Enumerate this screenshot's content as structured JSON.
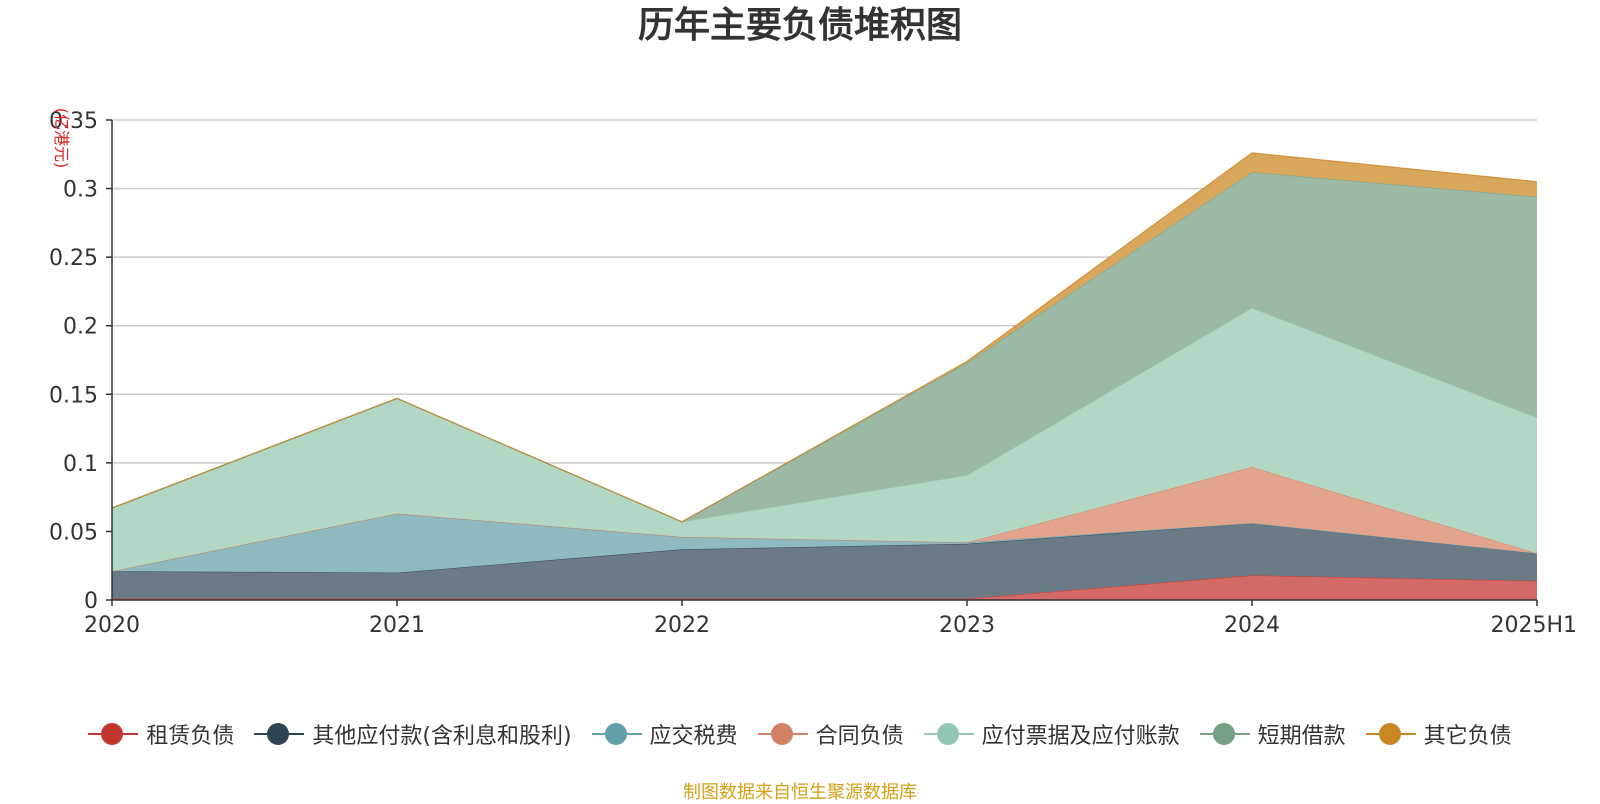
{
  "title": "历年主要负债堆积图",
  "footer": "制图数据来自恒生聚源数据库",
  "chart_data": {
    "type": "area",
    "stacked": true,
    "title": "历年主要负债堆积图",
    "ylabel": "(亿港元)",
    "ylim": [
      0,
      0.35
    ],
    "yticks": [
      0,
      0.05,
      0.1,
      0.15,
      0.2,
      0.25,
      0.3,
      0.35
    ],
    "yticklabels": [
      "0",
      "0.05",
      "0.1",
      "0.15",
      "0.2",
      "0.25",
      "0.3",
      "0.35"
    ],
    "categories": [
      "2020",
      "2021",
      "2022",
      "2023",
      "2024",
      "2025H1"
    ],
    "grid": true,
    "legend_position": "bottom",
    "series": [
      {
        "name": "租赁负债",
        "color": "#c23531",
        "fill": "#d46a68",
        "values": [
          0.001,
          0.001,
          0.001,
          0.001,
          0.018,
          0.014
        ]
      },
      {
        "name": "其他应付款(含利息和股利)",
        "color": "#2f4554",
        "fill": "#6b7b86",
        "values": [
          0.02,
          0.019,
          0.036,
          0.04,
          0.038,
          0.02
        ]
      },
      {
        "name": "应交税费",
        "color": "#61a0a8",
        "fill": "#8fbbc0",
        "values": [
          0.0,
          0.043,
          0.009,
          0.001,
          0.0,
          0.0
        ]
      },
      {
        "name": "合同负债",
        "color": "#d48265",
        "fill": "#e3a48d",
        "values": [
          0.0,
          0.0,
          0.0,
          0.0,
          0.041,
          0.0
        ]
      },
      {
        "name": "应付票据及应付账款",
        "color": "#91c7ae",
        "fill": "#b2d8c5",
        "values": [
          0.046,
          0.084,
          0.011,
          0.049,
          0.116,
          0.099
        ]
      },
      {
        "name": "短期借款",
        "color": "#749f83",
        "fill": "#9bb9a5",
        "values": [
          0.0,
          0.0,
          0.0,
          0.082,
          0.099,
          0.161
        ]
      },
      {
        "name": "其它负债",
        "color": "#ca8622",
        "fill": "#d8a75c",
        "values": [
          0.0,
          0.0,
          0.0,
          0.001,
          0.014,
          0.011
        ]
      }
    ]
  }
}
